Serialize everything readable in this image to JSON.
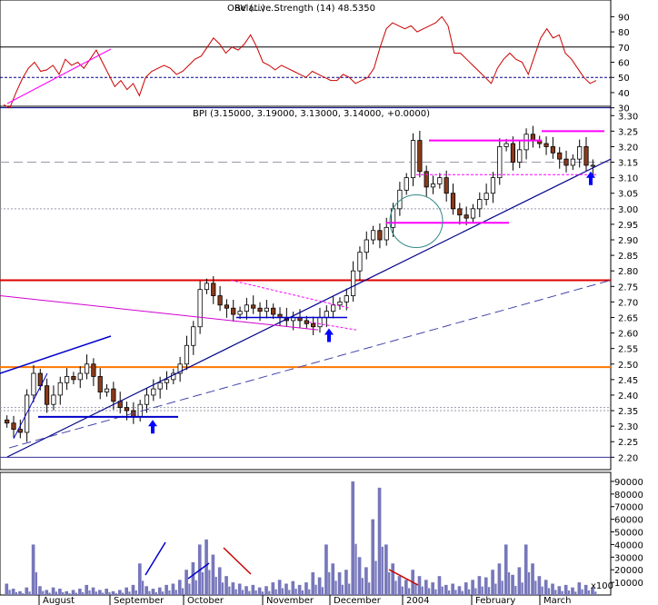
{
  "chart_data": [
    {
      "type": "line",
      "panel": "rsi",
      "title_overlap_a": "Relative Strength (14) 48.5350",
      "title_overlap_b": "OBV (...) ...",
      "yticks": [
        30,
        40,
        50,
        60,
        70,
        80,
        90
      ],
      "ylim": [
        28,
        98
      ],
      "levels": {
        "upper": 70,
        "middle": 50,
        "lower": 30
      },
      "rsi": [
        32,
        30,
        40,
        49,
        56,
        60,
        54,
        55,
        58,
        52,
        62,
        58,
        60,
        56,
        62,
        68,
        60,
        52,
        44,
        48,
        42,
        46,
        38,
        50,
        54,
        56,
        58,
        56,
        52,
        54,
        58,
        62,
        64,
        70,
        76,
        72,
        66,
        70,
        68,
        72,
        78,
        70,
        60,
        58,
        55,
        58,
        56,
        54,
        52,
        50,
        54,
        52,
        50,
        48,
        48,
        52,
        50,
        46,
        48,
        50,
        56,
        70,
        82,
        86,
        84,
        82,
        84,
        80,
        82,
        84,
        86,
        90,
        84,
        66,
        66,
        62,
        58,
        54,
        50,
        46,
        56,
        62,
        66,
        62,
        60,
        52,
        64,
        76,
        82,
        76,
        78,
        66,
        62,
        56,
        50,
        46,
        48
      ]
    },
    {
      "type": "candlestick",
      "panel": "price",
      "title": "BPI (3.15000, 3.19000, 3.13000, 3.14000, +0.0000)",
      "yticks": [
        2.2,
        2.25,
        2.3,
        2.35,
        2.4,
        2.45,
        2.5,
        2.55,
        2.6,
        2.65,
        2.7,
        2.75,
        2.8,
        2.85,
        2.9,
        2.95,
        3.0,
        3.05,
        3.1,
        3.15,
        3.2,
        3.25,
        3.3
      ],
      "ylim": [
        2.16,
        3.33
      ],
      "xlabels": [
        "August",
        "September",
        "October",
        "November",
        "December",
        "2004",
        "February",
        "March"
      ],
      "closes": [
        2.31,
        2.29,
        2.28,
        2.4,
        2.47,
        2.43,
        2.37,
        2.4,
        2.44,
        2.46,
        2.45,
        2.47,
        2.5,
        2.46,
        2.41,
        2.42,
        2.38,
        2.36,
        2.35,
        2.33,
        2.37,
        2.4,
        2.42,
        2.44,
        2.45,
        2.47,
        2.5,
        2.56,
        2.62,
        2.74,
        2.76,
        2.72,
        2.69,
        2.68,
        2.66,
        2.67,
        2.69,
        2.68,
        2.67,
        2.68,
        2.66,
        2.65,
        2.64,
        2.65,
        2.64,
        2.63,
        2.62,
        2.65,
        2.67,
        2.69,
        2.7,
        2.72,
        2.8,
        2.86,
        2.9,
        2.93,
        2.9,
        2.94,
        3.0,
        3.06,
        3.1,
        3.22,
        3.12,
        3.07,
        3.08,
        3.1,
        3.05,
        3.0,
        2.98,
        2.97,
        3.0,
        3.03,
        3.05,
        3.1,
        3.2,
        3.21,
        3.15,
        3.19,
        3.24,
        3.22,
        3.21,
        3.2,
        3.18,
        3.16,
        3.14,
        3.16,
        3.2,
        3.14,
        3.14
      ],
      "hlines": [
        3.15,
        3.0,
        2.36,
        2.35
      ],
      "support_resistance": [
        2.77,
        2.49
      ]
    },
    {
      "type": "bar",
      "panel": "volume",
      "yticks": [
        10000,
        20000,
        30000,
        40000,
        50000,
        60000,
        70000,
        80000,
        90000
      ],
      "ylim": [
        0,
        95000
      ],
      "scale_label": "x100",
      "volumes": [
        9000,
        5000,
        3000,
        6000,
        40000,
        7000,
        4000,
        6000,
        5000,
        3000,
        4000,
        5000,
        8000,
        6000,
        4000,
        5000,
        3000,
        4000,
        6000,
        8000,
        25000,
        7000,
        5000,
        6000,
        8000,
        9000,
        12000,
        20000,
        26000,
        40000,
        44000,
        32000,
        22000,
        15000,
        10000,
        9000,
        7000,
        8000,
        6000,
        7000,
        10000,
        12000,
        9000,
        11000,
        8000,
        10000,
        18000,
        14000,
        40000,
        25000,
        18000,
        20000,
        90000,
        30000,
        22000,
        60000,
        85000,
        40000,
        25000,
        15000,
        12000,
        20000,
        15000,
        12000,
        10000,
        15000,
        8000,
        9000,
        7000,
        10000,
        12000,
        15000,
        14000,
        20000,
        25000,
        40000,
        16000,
        22000,
        40000,
        25000,
        15000,
        12000,
        9000,
        7000,
        8000,
        6000,
        10000,
        8000,
        6000
      ]
    }
  ]
}
